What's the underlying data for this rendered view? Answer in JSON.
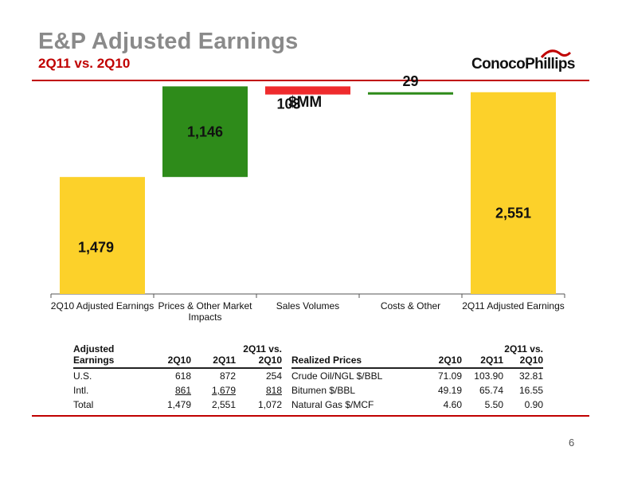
{
  "slide": {
    "title": "E&P Adjusted Earnings",
    "subtitle": "2Q11 vs. 2Q10",
    "unit_label": "$MM",
    "page_number": "6",
    "logo_text": "ConocoPhillips"
  },
  "colors": {
    "total_bar": "#fcd12a",
    "increase_bar": "#2e8b1a",
    "decrease_bar": "#ef2b2d",
    "title_gray": "#8a8a8a",
    "accent_red": "#c00000"
  },
  "chart_data": {
    "type": "bar",
    "subtype": "waterfall",
    "categories": [
      "2Q10 Adjusted Earnings",
      "Prices & Other Market Impacts",
      "Sales Volumes",
      "Costs & Other",
      "2Q11 Adjusted Earnings"
    ],
    "values": [
      1479,
      1146,
      -103,
      29,
      2551
    ],
    "data_labels": [
      "1,479",
      "1,146",
      "103",
      "29",
      "2,551"
    ],
    "kinds": [
      "total",
      "increase",
      "decrease",
      "increase",
      "total"
    ],
    "ylim": [
      0,
      2750
    ],
    "grid": false,
    "legend": "none"
  },
  "table_earnings": {
    "header_top": [
      "Adjusted",
      "",
      "",
      "2Q11 vs."
    ],
    "header_bottom": [
      "Earnings",
      "2Q10",
      "2Q11",
      "2Q10"
    ],
    "rows": [
      {
        "label": "U.S.",
        "q10": "618",
        "q11": "872",
        "diff": "254"
      },
      {
        "label": "Intl.",
        "q10": "861",
        "q11": "1,679",
        "diff": "818"
      },
      {
        "label": "Total",
        "q10": "1,479",
        "q11": "2,551",
        "diff": "1,072"
      }
    ]
  },
  "table_prices": {
    "header_top": [
      "",
      "",
      "",
      "2Q11 vs."
    ],
    "header_bottom": [
      "Realized Prices",
      "2Q10",
      "2Q11",
      "2Q10"
    ],
    "rows": [
      {
        "label": "Crude Oil/NGL $/BBL",
        "q10": "71.09",
        "q11": "103.90",
        "diff": "32.81"
      },
      {
        "label": "Bitumen $/BBL",
        "q10": "49.19",
        "q11": "65.74",
        "diff": "16.55"
      },
      {
        "label": "Natural Gas $/MCF",
        "q10": "4.60",
        "q11": "5.50",
        "diff": "0.90"
      }
    ]
  }
}
